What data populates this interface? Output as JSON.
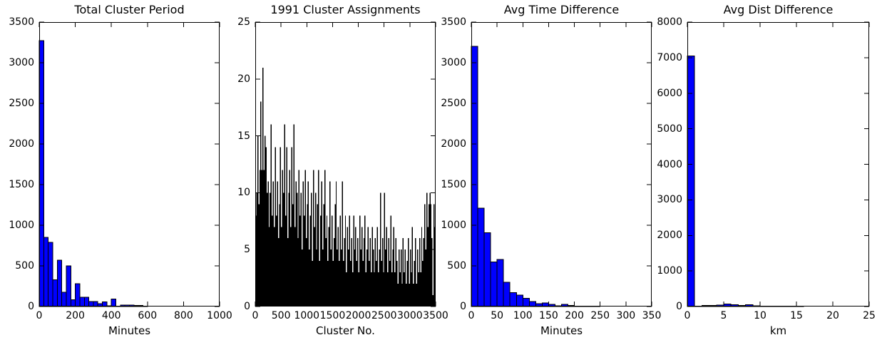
{
  "figure": {
    "background_color": "#ffffff",
    "text_color": "#000000",
    "grid": false,
    "legend": null,
    "tick_direction": "in"
  },
  "chart_data": [
    {
      "type": "bar",
      "title": "Total Cluster Period",
      "xlabel": "Minutes",
      "ylabel": "",
      "xlim": [
        0,
        1000
      ],
      "ylim": [
        0,
        3500
      ],
      "xticks": [
        0,
        200,
        400,
        600,
        800,
        1000
      ],
      "yticks": [
        0,
        500,
        1000,
        1500,
        2000,
        2500,
        3000,
        3500
      ],
      "bin_start": 0,
      "bin_width": 25,
      "values": [
        3270,
        850,
        790,
        330,
        570,
        175,
        500,
        85,
        280,
        115,
        115,
        60,
        60,
        35,
        55,
        8,
        90,
        5,
        18,
        18,
        18,
        15,
        12,
        5
      ],
      "bar_color": "#0000ff",
      "edge_color": "#000000"
    },
    {
      "type": "bar",
      "title": "1991 Cluster Assignments",
      "xlabel": "Cluster No.",
      "ylabel": "",
      "xlim": [
        0,
        3500
      ],
      "ylim": [
        0,
        25
      ],
      "xticks": [
        0,
        500,
        1000,
        1500,
        2000,
        2500,
        3000,
        3500
      ],
      "yticks": [
        0,
        5,
        10,
        15,
        20,
        25
      ],
      "bin_start": 0,
      "bin_width": 20,
      "values": [
        8,
        10,
        15,
        9,
        12,
        18,
        12,
        21,
        12,
        15,
        14,
        10,
        11,
        7,
        10,
        16,
        8,
        11,
        7,
        14,
        8,
        11,
        6,
        9,
        14,
        7,
        12,
        10,
        16,
        8,
        14,
        6,
        10,
        12,
        7,
        14,
        9,
        16,
        7,
        11,
        10,
        6,
        12,
        8,
        10,
        5,
        11,
        8,
        12,
        6,
        9,
        11,
        5,
        8,
        10,
        4,
        12,
        7,
        10,
        5,
        9,
        12,
        4,
        8,
        11,
        5,
        9,
        12,
        6,
        8,
        4,
        7,
        11,
        5,
        8,
        4,
        6,
        9,
        11,
        5,
        7,
        4,
        8,
        5,
        11,
        4,
        6,
        8,
        3,
        7,
        5,
        8,
        4,
        6,
        3,
        8,
        5,
        7,
        4,
        6,
        3,
        8,
        5,
        7,
        4,
        6,
        8,
        3,
        5,
        7,
        4,
        6,
        3,
        7,
        5,
        3,
        6,
        4,
        7,
        3,
        5,
        10,
        4,
        6,
        3,
        10,
        5,
        7,
        3,
        6,
        4,
        8,
        3,
        5,
        7,
        3,
        6,
        4,
        2,
        5,
        3,
        5,
        2,
        6,
        3,
        5,
        2,
        4,
        6,
        2,
        5,
        3,
        7,
        2,
        4,
        6,
        2,
        5,
        3,
        6,
        3,
        7,
        4,
        6,
        9,
        5,
        10,
        7,
        9,
        10,
        9,
        6,
        1,
        9,
        7
      ],
      "bar_color": "#000000",
      "edge_color": null
    },
    {
      "type": "bar",
      "title": "Avg Time Difference",
      "xlabel": "Minutes",
      "ylabel": "",
      "xlim": [
        0,
        350
      ],
      "ylim": [
        0,
        3500
      ],
      "xticks": [
        0,
        50,
        100,
        150,
        200,
        250,
        300,
        350
      ],
      "yticks": [
        0,
        500,
        1000,
        1500,
        2000,
        2500,
        3000,
        3500
      ],
      "bin_start": 0,
      "bin_width": 12.5,
      "values": [
        3200,
        1210,
        910,
        550,
        580,
        300,
        170,
        140,
        100,
        60,
        35,
        45,
        25,
        10,
        25,
        15,
        3,
        5,
        5,
        5
      ],
      "bar_color": "#0000ff",
      "edge_color": "#000000"
    },
    {
      "type": "bar",
      "title": "Avg Dist Difference",
      "xlabel": "km",
      "ylabel": "",
      "xlim": [
        0,
        25
      ],
      "ylim": [
        0,
        8000
      ],
      "xticks": [
        0,
        5,
        10,
        15,
        20,
        25
      ],
      "yticks": [
        0,
        1000,
        2000,
        3000,
        4000,
        5000,
        6000,
        7000,
        8000
      ],
      "bin_start": 0,
      "bin_width": 1,
      "values": [
        7050,
        8,
        30,
        35,
        40,
        70,
        55,
        30,
        55,
        20,
        12,
        12,
        12,
        12,
        12,
        5,
        0,
        0,
        0,
        0,
        0,
        0,
        0,
        0,
        0
      ],
      "bar_color": "#0000ff",
      "edge_color": "#000000"
    }
  ]
}
